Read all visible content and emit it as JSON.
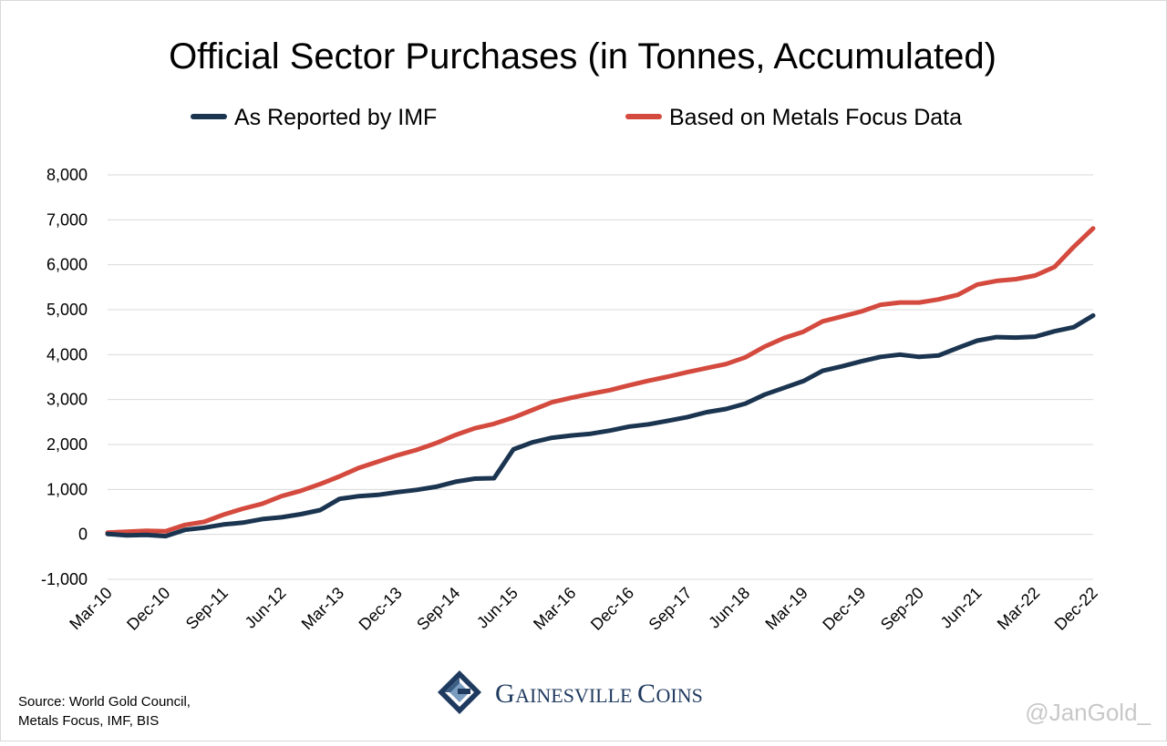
{
  "colors": {
    "imf": "#1b3551",
    "metals_focus": "#d44a3e",
    "grid": "#d9d9d9",
    "brand": "#1f3a5f",
    "handle": "#c8c8c8"
  },
  "brand": {
    "name_initial_1": "G",
    "name_rest_1": "AINESVILLE",
    "name_initial_2": "C",
    "name_rest_2": "OINS",
    "logo_icon": "gainesville-coins-logo-icon"
  },
  "source": {
    "line1": "Source: World Gold Council,",
    "line2": "Metals Focus, IMF, BIS"
  },
  "handle": "@JanGold_",
  "chart_data": {
    "type": "line",
    "title": "Official Sector Purchases (in Tonnes, Accumulated)",
    "xlabel": "",
    "ylabel": "",
    "ylim": [
      -1000,
      8000
    ],
    "yticks": [
      -1000,
      0,
      1000,
      2000,
      3000,
      4000,
      5000,
      6000,
      7000,
      8000
    ],
    "ytick_labels": [
      "-1,000",
      "0",
      "1,000",
      "2,000",
      "3,000",
      "4,000",
      "5,000",
      "6,000",
      "7,000",
      "8,000"
    ],
    "xtick_labels": [
      "Mar-10",
      "Dec-10",
      "Sep-11",
      "Jun-12",
      "Mar-13",
      "Dec-13",
      "Sep-14",
      "Jun-15",
      "Mar-16",
      "Dec-16",
      "Sep-17",
      "Jun-18",
      "Mar-19",
      "Dec-19",
      "Sep-20",
      "Jun-21",
      "Mar-22",
      "Dec-22"
    ],
    "grid": true,
    "legend_position": "top-center",
    "x": [
      "Mar-10",
      "Jun-10",
      "Sep-10",
      "Dec-10",
      "Mar-11",
      "Jun-11",
      "Sep-11",
      "Dec-11",
      "Mar-12",
      "Jun-12",
      "Sep-12",
      "Dec-12",
      "Mar-13",
      "Jun-13",
      "Sep-13",
      "Dec-13",
      "Mar-14",
      "Jun-14",
      "Sep-14",
      "Dec-14",
      "Mar-15",
      "Jun-15",
      "Sep-15",
      "Dec-15",
      "Mar-16",
      "Jun-16",
      "Sep-16",
      "Dec-16",
      "Mar-17",
      "Jun-17",
      "Sep-17",
      "Dec-17",
      "Mar-18",
      "Jun-18",
      "Sep-18",
      "Dec-18",
      "Mar-19",
      "Jun-19",
      "Sep-19",
      "Dec-19",
      "Mar-20",
      "Jun-20",
      "Sep-20",
      "Dec-20",
      "Mar-21",
      "Jun-21",
      "Sep-21",
      "Dec-21",
      "Mar-22",
      "Jun-22",
      "Sep-22",
      "Dec-22"
    ],
    "series": [
      {
        "name": "As Reported by IMF",
        "color": "#1b3551",
        "values": [
          10,
          -20,
          -10,
          -40,
          100,
          150,
          220,
          260,
          340,
          380,
          450,
          540,
          790,
          850,
          880,
          940,
          990,
          1060,
          1170,
          1240,
          1250,
          1890,
          2050,
          2150,
          2200,
          2240,
          2310,
          2400,
          2450,
          2530,
          2610,
          2720,
          2790,
          2910,
          3110,
          3260,
          3410,
          3640,
          3740,
          3850,
          3950,
          4000,
          3950,
          3980,
          4150,
          4310,
          4390,
          4380,
          4400,
          4520,
          4610,
          4870
        ]
      },
      {
        "name": "Based on Metals Focus Data",
        "color": "#d44a3e",
        "values": [
          40,
          60,
          80,
          70,
          210,
          280,
          440,
          570,
          680,
          850,
          970,
          1120,
          1290,
          1480,
          1620,
          1760,
          1880,
          2030,
          2210,
          2360,
          2460,
          2600,
          2770,
          2940,
          3040,
          3130,
          3210,
          3320,
          3420,
          3510,
          3610,
          3700,
          3790,
          3940,
          4180,
          4370,
          4510,
          4740,
          4850,
          4960,
          5110,
          5160,
          5160,
          5230,
          5330,
          5560,
          5640,
          5680,
          5760,
          5950,
          6400,
          6810
        ]
      }
    ]
  }
}
